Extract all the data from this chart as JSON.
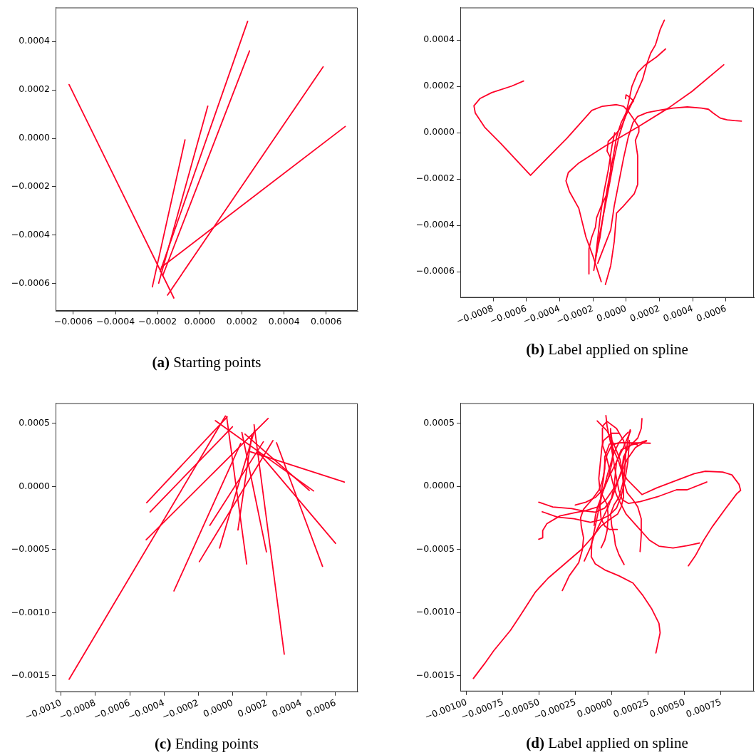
{
  "chart_data": [
    {
      "type": "line",
      "title": "(a) Starting points",
      "marker": "none",
      "grid": false,
      "legend": false,
      "xlim": [
        -0.000684,
        0.000749
      ],
      "ylim": [
        -0.000712,
        0.00054
      ],
      "xticks": [
        {
          "value": -0.0006,
          "label": "−0.0006"
        },
        {
          "value": -0.0004,
          "label": "−0.0004"
        },
        {
          "value": -0.0002,
          "label": "−0.0002"
        },
        {
          "value": 0,
          "label": "0.0000"
        },
        {
          "value": 0.0002,
          "label": "0.0002"
        },
        {
          "value": 0.0004,
          "label": "0.0004"
        },
        {
          "value": 0.0006,
          "label": "0.0006"
        }
      ],
      "yticks": [
        {
          "value": -0.0006,
          "label": "−0.0006"
        },
        {
          "value": -0.0004,
          "label": "−0.0004"
        },
        {
          "value": -0.0002,
          "label": "−0.0002"
        },
        {
          "value": 0,
          "label": "0.0000"
        },
        {
          "value": 0.0002,
          "label": "0.0002"
        },
        {
          "value": 0.0004,
          "label": "0.0004"
        }
      ],
      "series": [
        {
          "color": "#ff0028",
          "x": [
            -0.00062,
            -0.000123
          ],
          "values": [
            0.000222,
            -0.000659
          ]
        },
        {
          "color": "#ff0028",
          "x": [
            -0.000225,
            -7e-05
          ],
          "values": [
            -0.000613,
            -6e-06
          ]
        },
        {
          "color": "#ff0028",
          "x": [
            -0.000195,
            3.8e-05
          ],
          "values": [
            -0.000598,
            0.000133
          ]
        },
        {
          "color": "#ff0028",
          "x": [
            -0.000188,
            0.000227
          ],
          "values": [
            -0.00055,
            0.000483
          ]
        },
        {
          "color": "#ff0028",
          "x": [
            -0.000176,
            0.000236
          ],
          "values": [
            -0.000567,
            0.000361
          ]
        },
        {
          "color": "#ff0028",
          "x": [
            -0.000153,
            0.000585
          ],
          "values": [
            -0.000647,
            0.000295
          ]
        },
        {
          "color": "#ff0028",
          "x": [
            -0.000182,
            0.00069
          ],
          "values": [
            -0.000532,
            4.9e-05
          ]
        }
      ]
    },
    {
      "type": "line",
      "title": "(b) Label applied on spline",
      "marker": "none",
      "grid": false,
      "legend": false,
      "xlim": [
        -0.000997,
        0.000767
      ],
      "ylim": [
        -0.000712,
        0.00054
      ],
      "xticks": [
        {
          "value": -0.0008,
          "label": "−0.0008"
        },
        {
          "value": -0.0006,
          "label": "−0.0006"
        },
        {
          "value": -0.0004,
          "label": "−0.0004"
        },
        {
          "value": -0.0002,
          "label": "−0.0002"
        },
        {
          "value": 0,
          "label": "0.0000"
        },
        {
          "value": 0.0002,
          "label": "0.0002"
        },
        {
          "value": 0.0004,
          "label": "0.0004"
        },
        {
          "value": 0.0006,
          "label": "0.0006"
        }
      ],
      "yticks": [
        {
          "value": -0.0006,
          "label": "−0.0006"
        },
        {
          "value": -0.0004,
          "label": "−0.0004"
        },
        {
          "value": -0.0002,
          "label": "−0.0002"
        },
        {
          "value": 0,
          "label": "0.0000"
        },
        {
          "value": 0.0002,
          "label": "0.0002"
        },
        {
          "value": 0.0004,
          "label": "0.0004"
        }
      ],
      "series": [
        {
          "color": "#ff0028",
          "x": [
            -0.000617,
            -0.000688,
            -0.000808,
            -0.000879,
            -0.000915,
            -0.000907,
            -0.000851,
            -0.000752,
            -0.000575,
            -0.000497,
            -0.000355,
            -0.000207,
            -0.000143,
            -5.8e-05,
            -1.6e-05,
            1.3e-05,
            4.8e-05,
            7.6e-05,
            7.6e-05,
            5.5e-05,
            6.9e-05,
            6.9e-05,
            4.8e-05,
            -1.6e-05,
            -5.8e-05,
            -7.2e-05,
            -9.3e-05,
            -0.000125
          ],
          "values": [
            0.000223,
            0.000201,
            0.000173,
            0.000147,
            0.000116,
            8.5e-05,
            2.4e-05,
            -4.8e-05,
            -0.000184,
            -0.000126,
            -2.3e-05,
            9.6e-05,
            0.000114,
            0.000121,
            0.000114,
            9.1e-05,
            5.5e-05,
            2.4e-05,
            3e-06,
            -3.3e-05,
            -0.0001,
            -0.000223,
            -0.000264,
            -0.000316,
            -0.000347,
            -0.00047,
            -0.000573,
            -0.000655
          ]
        },
        {
          "color": "#ff0028",
          "x": [
            0.000229,
            0.000204,
            0.000176,
            0.000147,
            0.000126,
            9.8e-05,
            4.8e-05,
            1.3e-05,
            -3e-05,
            -5.8e-05,
            -7.2e-05,
            -9.3e-05,
            -0.000115,
            -0.000136,
            -0.000157,
            -0.000185
          ],
          "values": [
            0.000485,
            0.000445,
            0.000379,
            0.000343,
            0.000301,
            0.000229,
            0.000147,
            0.000106,
            4.4e-05,
            -1.7e-05,
            -7.9e-05,
            -0.000162,
            -0.000244,
            -0.000347,
            -0.00045,
            -0.000542
          ]
        },
        {
          "color": "#ff0028",
          "x": [
            0.000236,
            0.000183,
            0.000112,
            6.9e-05,
            3.4e-05,
            1.3e-05,
            -8e-06,
            -4.4e-05,
            -7.2e-05,
            -0.000101,
            -0.000129,
            -0.000157,
            -0.000195
          ],
          "values": [
            0.000361,
            0.000327,
            0.000291,
            0.00026,
            0.000199,
            0.000127,
            6.5e-05,
            -1.7e-05,
            -0.00011,
            -0.000223,
            -0.000326,
            -0.000429,
            -0.000594
          ]
        },
        {
          "color": "#ff0028",
          "x": [
            -4e-06,
            -1e-06,
            1.3e-05,
            4.5e-05,
            3.4e-05,
            -1e-06,
            -3e-05,
            -5.8e-05,
            -0.000108,
            -0.000115,
            -9.3e-05,
            -9.3e-05,
            -0.000115,
            -0.00015,
            -0.000178,
            -0.000185,
            -0.000207,
            -0.000224,
            -0.000224
          ],
          "values": [
            0.000147,
            0.000163,
            0.000157,
            0.000137,
            0.000127,
            7.5e-05,
            2.4e-05,
            -2e-06,
            -3.8e-05,
            -7.9e-05,
            -0.00011,
            -0.000162,
            -0.000264,
            -0.000316,
            -0.000367,
            -0.000408,
            -0.00045,
            -0.000501,
            -0.000609
          ]
        },
        {
          "color": "#ff0028",
          "x": [
            0.000586,
            0.000395,
            0.000253,
            6.9e-05,
            -0.000129,
            -0.000285,
            -0.000348,
            -0.000362,
            -0.000341,
            -0.000285,
            -0.000242,
            -0.0002,
            -0.00015
          ],
          "values": [
            0.000293,
            0.000178,
            0.000106,
            2.4e-05,
            -5.9e-05,
            -0.000131,
            -0.000172,
            -0.000208,
            -0.000254,
            -0.000326,
            -0.00045,
            -0.000532,
            -0.000643
          ]
        },
        {
          "color": "#ff0028",
          "x": [
            0.000692,
            0.00065,
            0.000607,
            0.000565,
            0.000522,
            0.000494,
            0.000452,
            0.000367,
            0.000282,
            0.000211,
            0.000126,
            6.9e-05,
            4.1e-05,
            1.3e-05,
            -1.6e-05,
            -4.4e-05,
            -7.2e-05,
            -9.3e-05,
            -0.000171
          ],
          "values": [
            5e-05,
            5.2e-05,
            5.5e-05,
            6.3e-05,
            8.5e-05,
            0.000101,
            0.000106,
            0.000111,
            0.000106,
            9.8e-05,
            8.7e-05,
            7e-05,
            4.4e-05,
            -1.7e-05,
            -0.00011,
            -0.000213,
            -0.000316,
            -0.000419,
            -0.000563
          ]
        },
        {
          "color": "#ff0028",
          "x": [
            -6.9e-05,
            -8.6e-05,
            -0.000108,
            -0.000136,
            -0.000157,
            -0.000183
          ],
          "values": [
            0,
            -5.9e-05,
            -0.000162,
            -0.000264,
            -0.000367,
            -0.000532
          ]
        }
      ]
    },
    {
      "type": "line",
      "title": "(c) Ending points",
      "marker": "none",
      "grid": false,
      "legend": false,
      "xlim": [
        -0.001032,
        0.000729
      ],
      "ylim": [
        -0.00163,
        0.000661
      ],
      "xticks": [
        {
          "value": -0.001,
          "label": "−0.0010"
        },
        {
          "value": -0.0008,
          "label": "−0.0008"
        },
        {
          "value": -0.0006,
          "label": "−0.0006"
        },
        {
          "value": -0.0004,
          "label": "−0.0004"
        },
        {
          "value": -0.0002,
          "label": "−0.0002"
        },
        {
          "value": 0,
          "label": "0.0000"
        },
        {
          "value": 0.0002,
          "label": "0.0002"
        },
        {
          "value": 0.0004,
          "label": "0.0004"
        },
        {
          "value": 0.0006,
          "label": "0.0006"
        }
      ],
      "yticks": [
        {
          "value": -0.0015,
          "label": "−0.0015"
        },
        {
          "value": -0.001,
          "label": "−0.0010"
        },
        {
          "value": -0.0005,
          "label": "−0.0005"
        },
        {
          "value": 0,
          "label": "0.0000"
        },
        {
          "value": 0.0005,
          "label": "0.0005"
        }
      ],
      "series": [
        {
          "color": "#ff0028",
          "x": [
            -0.000953,
            -4.2e-05
          ],
          "values": [
            -0.001528,
            0.000559
          ]
        },
        {
          "color": "#ff0028",
          "x": [
            -0.000501,
            -3.2e-05
          ],
          "values": [
            -0.000128,
            0.000552
          ]
        },
        {
          "color": "#ff0028",
          "x": [
            -0.000481,
            -1e-06
          ],
          "values": [
            -0.000202,
            0.000474
          ]
        },
        {
          "color": "#ff0028",
          "x": [
            -0.000504,
            0.000207
          ],
          "values": [
            -0.000422,
            0.00054
          ]
        },
        {
          "color": "#ff0028",
          "x": [
            -0.000342,
            4.7e-05
          ],
          "values": [
            -0.000828,
            0.000342
          ]
        },
        {
          "color": "#ff0028",
          "x": [
            -0.000101,
            0.000472
          ],
          "values": [
            0.000522,
            -3.5e-05
          ]
        },
        {
          "color": "#ff0028",
          "x": [
            -3.5e-05,
            8.2e-05
          ],
          "values": [
            0.000555,
            -0.000615
          ]
        },
        {
          "color": "#ff0028",
          "x": [
            5.4e-05,
            0.000197
          ],
          "values": [
            0.000429,
            -0.000518
          ]
        },
        {
          "color": "#ff0028",
          "x": [
            0.000125,
            0.000301
          ],
          "values": [
            0.00049,
            -0.00133
          ]
        },
        {
          "color": "#ff0028",
          "x": [
            7.2e-05,
            0.000447
          ],
          "values": [
            0.000416,
            -3e-05
          ]
        },
        {
          "color": "#ff0028",
          "x": [
            0.0001,
            0.000651
          ],
          "values": [
            0.000277,
            3.5e-05
          ]
        },
        {
          "color": "#ff0028",
          "x": [
            0.000142,
            0.0006
          ],
          "values": [
            0.000286,
            -0.000451
          ]
        },
        {
          "color": "#ff0028",
          "x": [
            0.000256,
            0.000524
          ],
          "values": [
            0.000347,
            -0.000633
          ]
        },
        {
          "color": "#ff0028",
          "x": [
            0.000179,
            -0.000133
          ],
          "values": [
            0.000355,
            -0.000308
          ]
        },
        {
          "color": "#ff0028",
          "x": [
            0.000235,
            -0.000194
          ],
          "values": [
            0.000364,
            -0.000596
          ]
        },
        {
          "color": "#ff0028",
          "x": [
            0.000128,
            -7.6e-05
          ],
          "values": [
            0.000448,
            -0.000488
          ]
        },
        {
          "color": "#ff0028",
          "x": [
            0.000111,
            3.1e-05
          ],
          "values": [
            0.000403,
            -0.000345
          ]
        }
      ]
    },
    {
      "type": "line",
      "title": "(d) Label applied on spline",
      "marker": "none",
      "grid": false,
      "legend": false,
      "xlim": [
        -0.001044,
        0.000976
      ],
      "ylim": [
        -0.001626,
        0.00066
      ],
      "xticks": [
        {
          "value": -0.001,
          "label": "−0.00100"
        },
        {
          "value": -0.00075,
          "label": "−0.00075"
        },
        {
          "value": -0.0005,
          "label": "−0.00050"
        },
        {
          "value": -0.00025,
          "label": "−0.00025"
        },
        {
          "value": 0,
          "label": "0.00000"
        },
        {
          "value": 0.00025,
          "label": "0.00025"
        },
        {
          "value": 0.0005,
          "label": "0.00050"
        },
        {
          "value": 0.00075,
          "label": "0.00075"
        }
      ],
      "yticks": [
        {
          "value": -0.0015,
          "label": "−0.0015"
        },
        {
          "value": -0.001,
          "label": "−0.0010"
        },
        {
          "value": -0.0005,
          "label": "−0.0005"
        },
        {
          "value": 0,
          "label": "0.0000"
        },
        {
          "value": 0.0005,
          "label": "0.0005"
        }
      ],
      "series": [
        {
          "color": "#ff0028",
          "x": [
            -0.000954,
            -0.000877,
            -0.000813,
            -0.000699,
            -0.000634,
            -0.000529,
            -0.00044,
            -0.000326,
            -0.000212,
            -0.000139,
            -7.5e-05,
            -1e-05,
            3.9e-05,
            6.3e-05,
            7.9e-05,
            7.9e-05,
            7.1e-05,
            4.7e-05,
            -1e-05,
            -3.4e-05,
            -4.2e-05
          ],
          "values": [
            -0.001523,
            -0.001406,
            -0.001302,
            -0.001142,
            -0.001029,
            -0.000841,
            -0.000728,
            -0.000615,
            -0.000502,
            -0.000408,
            -0.000314,
            -0.000257,
            -0.000219,
            -0.000163,
            -8.8e-05,
            7e-06,
            0.000101,
            0.000195,
            0.000346,
            0.000477,
            0.000562
          ]
        },
        {
          "color": "#ff0028",
          "x": [
            0.000302,
            0.000331,
            0.000323,
            0.000274,
            0.000209,
            0.000144,
            4.7e-05,
            -5e-05,
            -0.000115,
            -0.000143,
            -0.000139,
            -0.000115,
            -9.1e-05,
            -6.6e-05,
            -2.6e-05,
            1.5e-05,
            7.1e-05,
            0.000128
          ],
          "values": [
            -0.001321,
            -0.001161,
            -0.001086,
            -0.000973,
            -0.00086,
            -0.000766,
            -0.000709,
            -0.000662,
            -0.000615,
            -0.000558,
            -0.000445,
            -0.000314,
            -0.000182,
            -5e-05,
            6.3e-05,
            0.000157,
            0.000289,
            0.00044
          ]
        },
        {
          "color": "#ff0028",
          "x": [
            0.000525,
            0.000574,
            0.000631,
            0.000688,
            0.000777,
            0.000858,
            0.000885,
            0.000874,
            0.000825,
            0.000761,
            0.000639,
            0.000566,
            0.000436,
            0.000307,
            0.000206,
            0.000161,
            0.000104,
            7.1e-05,
            5.5e-05,
            1.5e-05,
            -3.4e-05,
            -0.000102
          ],
          "values": [
            -0.00063,
            -0.000549,
            -0.000427,
            -0.000323,
            -0.000182,
            -5.9e-05,
            -3.1e-05,
            1.6e-05,
            9.1e-05,
            0.000114,
            0.00012,
            0.000101,
            4.4e-05,
            -1.2e-05,
            -6.5e-05,
            -1.2e-05,
            5.4e-05,
            0.00012,
            0.000214,
            0.000327,
            0.00044,
            0.000519
          ]
        },
        {
          "color": "#ff0028",
          "x": [
            0.000652,
            0.000517,
            0.000444,
            0.000323,
            0.000193,
            0.000112,
            7.1e-05,
            4.7e-05,
            3.1e-05,
            1.5e-05,
            -2e-06,
            -1e-05
          ],
          "values": [
            3.5e-05,
            -2.7e-05,
            -2.7e-05,
            -7.8e-05,
            -0.000121,
            -0.000135,
            -0.000106,
            -3.1e-05,
            6.3e-05,
            0.000176,
            0.000289,
            0.000459
          ]
        },
        {
          "color": "#ff0028",
          "x": [
            0.000603,
            0.000517,
            0.00042,
            0.000323,
            0.000258,
            0.000177,
            9.6e-05,
            6.3e-05,
            3.1e-05,
            6e-06,
            -1.8e-05,
            -4.2e-05,
            -6.6e-05,
            -6.6e-05
          ],
          "values": [
            -0.000449,
            -0.00047,
            -0.000489,
            -0.000474,
            -0.000427,
            -0.000323,
            -0.000219,
            -0.000144,
            -6.9e-05,
            2.5e-05,
            0.000138,
            0.000251,
            0.000327,
            0.000462
          ]
        },
        {
          "color": "#ff0028",
          "x": [
            -0.000504,
            -0.000407,
            -0.000277,
            -0.000212,
            -0.000115,
            -5e-05,
            -2e-06,
            3.1e-05,
            6.3e-05,
            9.6e-05,
            0.000112,
            0.000125
          ],
          "values": [
            -0.000125,
            -0.000163,
            -0.000176,
            -0.000191,
            -0.000204,
            -0.000172,
            -9.7e-05,
            7e-06,
            0.00012,
            0.00027,
            0.000383,
            0.000449
          ]
        },
        {
          "color": "#ff0028",
          "x": [
            -0.00048,
            -0.000375,
            -0.000261,
            -0.000148,
            -8.3e-05,
            -1.8e-05,
            3.1e-05,
            6.3e-05,
            8.8e-05,
            0.000109,
            0.00012
          ],
          "values": [
            -0.000201,
            -0.000244,
            -0.000257,
            -0.000285,
            -0.000266,
            -0.000229,
            -0.000172,
            -7.8e-05,
            4.4e-05,
            0.000195,
            0.000364
          ]
        },
        {
          "color": "#ff0028",
          "x": [
            -0.000504,
            -0.000477,
            -0.000477,
            -0.000448,
            -0.000358,
            -0.000261,
            -0.00018,
            -9.9e-05,
            -4.2e-05,
            1.5e-05,
            6.3e-05,
            0.000104,
            0.000161,
            0.000238
          ],
          "values": [
            -0.000419,
            -0.000408,
            -0.000351,
            -0.000295,
            -0.000234,
            -0.00021,
            -0.000191,
            -0.000163,
            -0.000106,
            -1.2e-05,
            0.000101,
            0.000214,
            0.000308,
            0.000361
          ]
        },
        {
          "color": "#ff0028",
          "x": [
            -0.000342,
            -0.000294,
            -0.000229,
            -0.000204,
            -0.000196,
            -0.000212,
            -0.000216,
            -0.000196,
            -0.000139,
            -9.1e-05,
            -6.6e-05,
            -5e-05,
            -5e-05,
            -1.8e-05,
            6.3e-05,
            0.000177,
            0.000263
          ],
          "values": [
            -0.000826,
            -0.000709,
            -0.000605,
            -0.000502,
            -0.000408,
            -0.000314,
            -0.000248,
            -0.000182,
            -0.000106,
            -3.1e-05,
            4.4e-05,
            0.000138,
            0.000233,
            0.000336,
            0.000346,
            0.000346,
            0.000342
          ]
        },
        {
          "color": "#ff0028",
          "x": [
            -0.000191,
            -0.000148,
            -0.000123,
            -9.1e-05,
            -5.8e-05,
            -2.6e-05,
            -2e-06,
            1.5e-05,
            2.3e-05,
            3.1e-05,
            6.3e-05,
            0.000128,
            0.000193,
            0.000237
          ],
          "values": [
            -0.000592,
            -0.000483,
            -0.000389,
            -0.000314,
            -0.000238,
            -0.000163,
            -8.8e-05,
            7e-06,
            0.000101,
            0.000195,
            0.000289,
            0.000327,
            0.000346,
            0.000364
          ]
        },
        {
          "color": "#ff0028",
          "x": [
            0.000193,
            0.000201,
            0.000201,
            0.000177,
            0.000144,
            0.000104,
            7.9e-05,
            7.1e-05,
            7.9e-05,
            0.000112,
            0.000177,
            0.000201,
            0.000206
          ],
          "values": [
            -0.000517,
            -0.000389,
            -0.000257,
            -0.000163,
            -0.000106,
            -5e-05,
            4.4e-05,
            0.000157,
            0.000233,
            0.000308,
            0.000383,
            0.000459,
            0.000538
          ]
        },
        {
          "color": "#ff0028",
          "x": [
            -7.5e-05,
            -5e-05,
            -3.4e-05,
            -2.6e-05,
            -3.4e-05,
            -5.8e-05,
            -8.3e-05,
            -9.1e-05,
            -8.3e-05,
            -7.5e-05,
            -7e-05,
            -5.8e-05,
            -2e-06,
            4.7e-05
          ],
          "values": [
            -0.000487,
            -0.000427,
            -0.000351,
            -0.000238,
            -0.000144,
            -8.8e-05,
            -3.1e-05,
            6.3e-05,
            0.000157,
            0.000251,
            0.000308,
            0.000364,
            0.000421,
            0.000421
          ]
        },
        {
          "color": "#ff0028",
          "x": [
            8.3e-05,
            4.7e-05,
            2.3e-05,
            1.5e-05,
            -2e-06,
            -1e-05,
            1.5e-05,
            4.7e-05,
            7.9e-05,
            8.8e-05,
            9.6e-05,
            7.9e-05,
            3.1e-05,
            -3.4e-05,
            -6.6e-05
          ],
          "values": [
            -0.000619,
            -0.00054,
            -0.000464,
            -0.000389,
            -0.000314,
            -0.000219,
            -0.000144,
            -8.8e-05,
            4.4e-05,
            0.000138,
            0.000289,
            0.000364,
            0.000459,
            0.000515,
            0.000477
          ]
        },
        {
          "color": "#ff0028",
          "x": [
            3.6e-05,
            -1.8e-05,
            -5e-05,
            -7.5e-05,
            -8.3e-05,
            -7.5e-05,
            -5.8e-05,
            -5e-05,
            -3.4e-05,
            -2e-06,
            4.7e-05,
            0.000112,
            0.000161,
            0.000177
          ],
          "values": [
            -0.000342,
            -0.000342,
            -0.000314,
            -0.000257,
            -0.000163,
            -5e-05,
            6.3e-05,
            0.000176,
            0.000251,
            0.000327,
            0.000346,
            0.000346,
            0.000336,
            0.000327
          ]
        },
        {
          "color": "#ff0028",
          "x": [
            -0.000123,
            -0.000115,
            -9.9e-05,
            -7.5e-05,
            -5e-05,
            -3.4e-05,
            -1e-05,
            1.5e-05,
            4.7e-05,
            8.8e-05,
            0.000112
          ],
          "values": [
            -0.00031,
            -0.000238,
            -0.000163,
            -8.8e-05,
            7e-06,
            8.2e-05,
            0.000176,
            0.00027,
            0.000346,
            0.000402,
            0.00043
          ]
        },
        {
          "color": "#ff0028",
          "x": [
            -0.000253,
            -0.00018,
            -0.000115,
            -6.6e-05,
            -2.6e-05,
            -2e-06,
            6e-06,
            -2e-06,
            -1e-05
          ],
          "values": [
            -0.000148,
            -0.000125,
            -8.8e-05,
            -3.1e-05,
            6.3e-05,
            0.000176,
            0.00027,
            0.000383,
            0.00044
          ]
        }
      ]
    }
  ]
}
